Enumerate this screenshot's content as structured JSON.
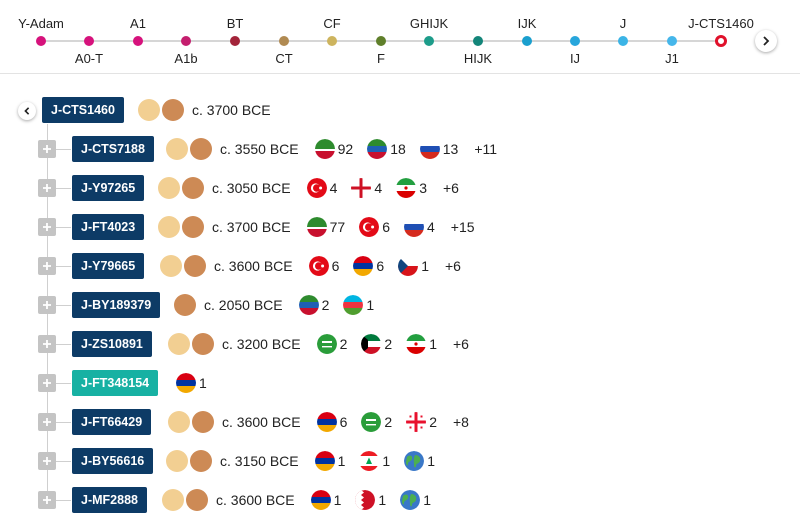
{
  "path": {
    "nodes": [
      {
        "label": "Y-Adam",
        "pos": "up",
        "color": "#d6127c"
      },
      {
        "label": "A0-T",
        "pos": "down",
        "color": "#d6127c"
      },
      {
        "label": "A1",
        "pos": "up",
        "color": "#d6127c"
      },
      {
        "label": "A1b",
        "pos": "down",
        "color": "#c41e6e"
      },
      {
        "label": "BT",
        "pos": "up",
        "color": "#a3243a"
      },
      {
        "label": "CT",
        "pos": "down",
        "color": "#b08a52"
      },
      {
        "label": "CF",
        "pos": "up",
        "color": "#cdb45e"
      },
      {
        "label": "F",
        "pos": "down",
        "color": "#5f7f2a"
      },
      {
        "label": "GHIJK",
        "pos": "up",
        "color": "#1d9c8a"
      },
      {
        "label": "HIJK",
        "pos": "down",
        "color": "#138579"
      },
      {
        "label": "IJK",
        "pos": "up",
        "color": "#1a9fce"
      },
      {
        "label": "IJ",
        "pos": "down",
        "color": "#27a6dc"
      },
      {
        "label": "J",
        "pos": "up",
        "color": "#3bb4e6"
      },
      {
        "label": "J1",
        "pos": "down",
        "color": "#45b6ea"
      },
      {
        "label": "J-CTS1460",
        "pos": "up",
        "color": "#e0112b",
        "current": true
      }
    ],
    "scroll_icon": "chevron-right-icon"
  },
  "root": {
    "label": "J-CTS1460",
    "date": "c. 3700 BCE",
    "collapse_icon": "chevron-left-icon"
  },
  "children": [
    {
      "label": "J-CTS7188",
      "badges": 2,
      "date": "c. 3550 BCE",
      "flags": [
        {
          "country": "chechnya",
          "count": "92"
        },
        {
          "country": "dagestan",
          "count": "18"
        },
        {
          "country": "russia",
          "count": "13"
        }
      ],
      "more": "+11"
    },
    {
      "label": "J-Y97265",
      "badges": 2,
      "date": "c. 3050 BCE",
      "flags": [
        {
          "country": "turkey",
          "count": "4"
        },
        {
          "country": "england",
          "count": "4"
        },
        {
          "country": "iran",
          "count": "3"
        }
      ],
      "more": "+6"
    },
    {
      "label": "J-FT4023",
      "badges": 2,
      "date": "c. 3700 BCE",
      "flags": [
        {
          "country": "chechnya",
          "count": "77"
        },
        {
          "country": "turkey",
          "count": "6"
        },
        {
          "country": "russia",
          "count": "4"
        }
      ],
      "more": "+15"
    },
    {
      "label": "J-Y79665",
      "badges": 2,
      "date": "c. 3600 BCE",
      "flags": [
        {
          "country": "turkey",
          "count": "6"
        },
        {
          "country": "armenia",
          "count": "6"
        },
        {
          "country": "czechia",
          "count": "1"
        }
      ],
      "more": "+6"
    },
    {
      "label": "J-BY189379",
      "badges": 1,
      "date": "c. 2050 BCE",
      "flags": [
        {
          "country": "dagestan",
          "count": "2"
        },
        {
          "country": "azerbaijan",
          "count": "1"
        }
      ],
      "more": ""
    },
    {
      "label": "J-ZS10891",
      "badges": 2,
      "date": "c. 3200 BCE",
      "flags": [
        {
          "country": "saudi-arabia",
          "count": "2"
        },
        {
          "country": "kuwait",
          "count": "2"
        },
        {
          "country": "iran",
          "count": "1"
        }
      ],
      "more": "+6"
    },
    {
      "label": "J-FT348154",
      "badges": 0,
      "date": "",
      "teal": true,
      "flags": [
        {
          "country": "armenia",
          "count": "1"
        }
      ],
      "more": ""
    },
    {
      "label": "J-FT66429",
      "badges": 2,
      "date": "c. 3600 BCE",
      "flags": [
        {
          "country": "armenia",
          "count": "6"
        },
        {
          "country": "saudi-arabia",
          "count": "2"
        },
        {
          "country": "georgia",
          "count": "2"
        }
      ],
      "more": "+8"
    },
    {
      "label": "J-BY56616",
      "badges": 2,
      "date": "c. 3150 BCE",
      "flags": [
        {
          "country": "armenia",
          "count": "1"
        },
        {
          "country": "lebanon",
          "count": "1"
        },
        {
          "country": "world",
          "count": "1"
        }
      ],
      "more": ""
    },
    {
      "label": "J-MF2888",
      "badges": 2,
      "date": "c. 3600 BCE",
      "flags": [
        {
          "country": "armenia",
          "count": "1"
        },
        {
          "country": "bahrain",
          "count": "1"
        },
        {
          "country": "world",
          "count": "1"
        }
      ],
      "more": ""
    }
  ]
}
